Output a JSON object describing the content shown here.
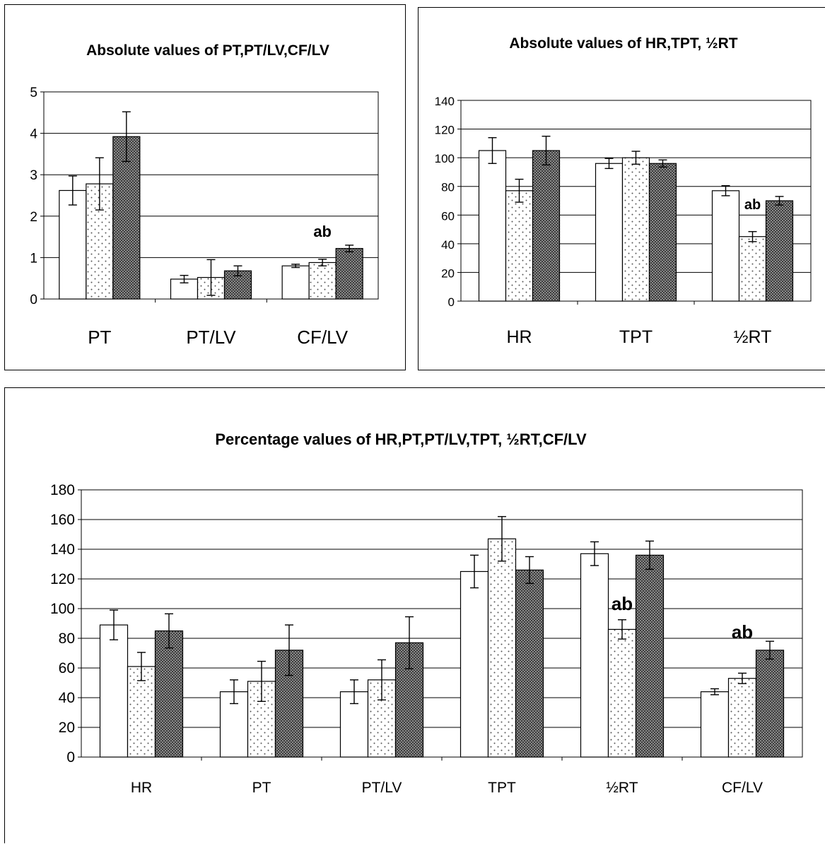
{
  "chart_data": [
    {
      "type": "bar",
      "title": "Absolute values of PT,PT/LV,CF/LV",
      "categories": [
        "PT",
        "PT/LV",
        "CF/LV"
      ],
      "ylim": [
        0,
        5
      ],
      "yticks": [
        0,
        1,
        2,
        3,
        4,
        5
      ],
      "grid": true,
      "series": [
        {
          "pattern": "white",
          "values": [
            2.62,
            0.48,
            0.8
          ],
          "errors": [
            0.35,
            0.09,
            0.04
          ]
        },
        {
          "pattern": "dotted",
          "values": [
            2.78,
            0.52,
            0.88
          ],
          "errors": [
            0.63,
            0.43,
            0.08
          ]
        },
        {
          "pattern": "dark-crosshatch",
          "values": [
            3.92,
            0.68,
            1.22
          ],
          "errors": [
            0.6,
            0.12,
            0.08
          ]
        }
      ],
      "annotations": [
        {
          "text": "ab",
          "category": "CF/LV",
          "y": 1.5
        }
      ]
    },
    {
      "type": "bar",
      "title": "Absolute  values of HR,TPT, ½RT",
      "categories": [
        "HR",
        "TPT",
        "½RT"
      ],
      "ylim": [
        0,
        140
      ],
      "yticks": [
        0,
        20,
        40,
        60,
        80,
        100,
        120,
        140
      ],
      "grid": true,
      "series": [
        {
          "pattern": "white",
          "values": [
            105,
            96,
            77
          ],
          "errors": [
            9,
            3.5,
            3.5
          ]
        },
        {
          "pattern": "dotted",
          "values": [
            77,
            100,
            45
          ],
          "errors": [
            8,
            4.5,
            3.5
          ]
        },
        {
          "pattern": "dark-crosshatch",
          "values": [
            105,
            96,
            70
          ],
          "errors": [
            10,
            2.5,
            3
          ]
        }
      ],
      "annotations": [
        {
          "text": "ab",
          "category": "½RT",
          "y": 64
        }
      ]
    },
    {
      "type": "bar",
      "title": "Percentage values of HR,PT,PT/LV,TPT, ½RT,CF/LV",
      "categories": [
        "HR",
        "PT",
        "PT/LV",
        "TPT",
        "½RT",
        "CF/LV"
      ],
      "ylim": [
        0,
        180
      ],
      "yticks": [
        0,
        20,
        40,
        60,
        80,
        100,
        120,
        140,
        160,
        180
      ],
      "grid": true,
      "series": [
        {
          "pattern": "white",
          "values": [
            89,
            44,
            44,
            125,
            137,
            44
          ],
          "errors": [
            10,
            8,
            8,
            11,
            8,
            2
          ]
        },
        {
          "pattern": "dotted",
          "values": [
            61,
            51,
            52,
            147,
            86,
            53
          ],
          "errors": [
            9.5,
            13.5,
            13.5,
            15,
            6.5,
            3.5
          ]
        },
        {
          "pattern": "dark-crosshatch",
          "values": [
            85,
            72,
            77,
            126,
            136,
            72
          ],
          "errors": [
            11.5,
            17,
            17.5,
            9,
            9.5,
            6
          ]
        }
      ],
      "annotations": [
        {
          "text": "ab",
          "category": "½RT",
          "y": 99
        },
        {
          "text": "ab",
          "category": "CF/LV",
          "y": 80
        }
      ]
    }
  ]
}
